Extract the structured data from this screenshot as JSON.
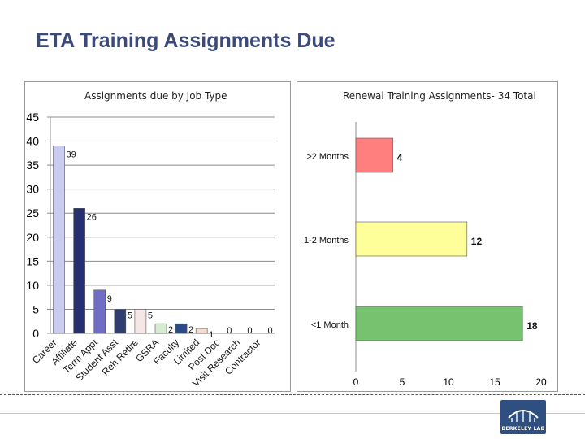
{
  "slide": {
    "title": "ETA Training Assignments Due"
  },
  "chart_data": [
    {
      "type": "bar",
      "title": "Assignments due by Job Type",
      "categories": [
        "Career",
        "Affiliate",
        "Term Appt",
        "Student Asst",
        "Reh Retire",
        "GSRA",
        "Faculty",
        "Limited",
        "Post Doc",
        "Visit Research",
        "Contractor"
      ],
      "values": [
        39,
        26,
        9,
        5,
        5,
        2,
        2,
        1,
        0,
        0,
        0
      ],
      "value_labels": [
        "39",
        "26",
        "9",
        "5",
        "5",
        "2",
        "2",
        "1",
        "0",
        "0",
        "0"
      ],
      "colors": [
        "#c9ccee",
        "#27306e",
        "#6f6ec4",
        "#2e3f6e",
        "#f6e6e6",
        "#d5ecd0",
        "#2b4a8a",
        "#f5dccf",
        "#cccccc",
        "#cccccc",
        "#cccccc"
      ],
      "ylim": [
        0,
        45
      ],
      "yticks": [
        "0",
        "5",
        "10",
        "15",
        "20",
        "25",
        "30",
        "35",
        "40",
        "45"
      ],
      "grid": true,
      "xlabel": "",
      "ylabel": ""
    },
    {
      "type": "bar",
      "orientation": "horizontal",
      "title": "Renewal Training Assignments- 34 Total",
      "categories": [
        ">2 Months",
        "1-2 Months",
        "<1 Month"
      ],
      "values": [
        4,
        12,
        18
      ],
      "value_labels": [
        "4",
        "12",
        "18"
      ],
      "colors": [
        "#ff7f7f",
        "#ffff99",
        "#77c26e"
      ],
      "xlim": [
        0,
        20
      ],
      "xticks": [
        "0",
        "5",
        "10",
        "15",
        "20"
      ],
      "grid": false,
      "xlabel": "",
      "ylabel": ""
    }
  ],
  "logo": {
    "text": "BERKELEY LAB"
  }
}
